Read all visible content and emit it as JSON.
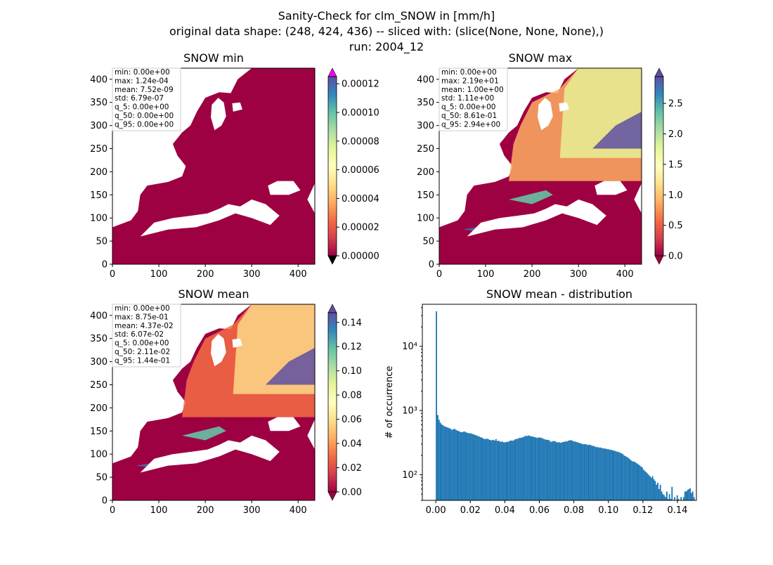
{
  "figure": {
    "title_lines": [
      "Sanity-Check for clm_SNOW in [mm/h]",
      "original data shape: (248, 424, 436) -- sliced with: (slice(None, None, None),)",
      "run: 2004_12"
    ]
  },
  "colors": {
    "cmap": [
      "#9e0142",
      "#d53e4f",
      "#f46d43",
      "#fdae61",
      "#fee08b",
      "#ffffbf",
      "#e6f598",
      "#abdda4",
      "#66c2a5",
      "#3288bd",
      "#5e4fa2"
    ],
    "over_magenta": "#ff00ff",
    "under_black": "#000000",
    "hist_bar": "#1f77b4",
    "land_low": "#9e0142"
  },
  "chart_data": [
    {
      "type": "heatmap",
      "title": "SNOW min",
      "xlim": [
        0,
        436
      ],
      "ylim": [
        0,
        424
      ],
      "xticks": [
        "0",
        "100",
        "200",
        "300",
        "400"
      ],
      "yticks": [
        "0",
        "50",
        "100",
        "150",
        "200",
        "250",
        "300",
        "350",
        "400"
      ],
      "stats": [
        "min: 0.00e+00",
        "max: 1.24e-04",
        "mean: 7.52e-09",
        "std: 6.79e-07",
        "q_5: 0.00e+00",
        "q_50: 0.00e+00",
        "q_95: 0.00e+00"
      ],
      "colorbar": {
        "range": [
          0,
          0.000125
        ],
        "ticks": [
          "0.00000",
          "0.00002",
          "0.00004",
          "0.00006",
          "0.00008",
          "0.00010",
          "0.00012"
        ],
        "tick_values": [
          0,
          2e-05,
          4e-05,
          6e-05,
          8e-05,
          0.0001,
          0.00012
        ],
        "extend": "both"
      },
      "field_level": 0.0
    },
    {
      "type": "heatmap",
      "title": "SNOW max",
      "xlim": [
        0,
        436
      ],
      "ylim": [
        0,
        424
      ],
      "xticks": [
        "0",
        "100",
        "200",
        "300",
        "400"
      ],
      "yticks": [
        "0",
        "50",
        "100",
        "150",
        "200",
        "250",
        "300",
        "350",
        "400"
      ],
      "stats": [
        "min: 0.00e+00",
        "max: 2.19e+01",
        "mean: 1.00e+00",
        "std: 1.11e+00",
        "q_5: 0.00e+00",
        "q_50: 8.61e-01",
        "q_95: 2.94e+00"
      ],
      "colorbar": {
        "range": [
          0,
          2.94
        ],
        "ticks": [
          "0.0",
          "0.5",
          "1.0",
          "1.5",
          "2.0",
          "2.5"
        ],
        "tick_values": [
          0,
          0.5,
          1.0,
          1.5,
          2.0,
          2.5
        ],
        "extend": "both"
      },
      "field_level": 1.0
    },
    {
      "type": "heatmap",
      "title": "SNOW mean",
      "xlim": [
        0,
        436
      ],
      "ylim": [
        0,
        424
      ],
      "xticks": [
        "0",
        "100",
        "200",
        "300",
        "400"
      ],
      "yticks": [
        "0",
        "50",
        "100",
        "150",
        "200",
        "250",
        "300",
        "350",
        "400"
      ],
      "stats": [
        "min: 0.00e+00",
        "max: 8.75e-01",
        "mean: 4.37e-02",
        "std: 6.07e-02",
        "q_5: 0.00e+00",
        "q_50: 2.11e-02",
        "q_95: 1.44e-01"
      ],
      "colorbar": {
        "range": [
          0,
          0.148
        ],
        "ticks": [
          "0.00",
          "0.02",
          "0.04",
          "0.06",
          "0.08",
          "0.10",
          "0.12",
          "0.14"
        ],
        "tick_values": [
          0,
          0.02,
          0.04,
          0.06,
          0.08,
          0.1,
          0.12,
          0.14
        ],
        "extend": "both"
      },
      "field_level": 0.6
    },
    {
      "type": "bar",
      "title": "SNOW mean - distribution",
      "ylabel": "# of occurrence",
      "yscale": "log",
      "xlim": [
        -0.0078,
        0.151
      ],
      "ylim": [
        40,
        45000
      ],
      "xticks": [
        "0.00",
        "0.02",
        "0.04",
        "0.06",
        "0.08",
        "0.10",
        "0.12",
        "0.14"
      ],
      "xtick_values": [
        0,
        0.02,
        0.04,
        0.06,
        0.08,
        0.1,
        0.12,
        0.14
      ],
      "yticks": [
        "10²",
        "10³",
        "10⁴"
      ],
      "ytick_values": [
        100,
        1000,
        10000
      ],
      "bin_start": 0.0,
      "bin_width": 0.00075,
      "values": [
        35000,
        850,
        720,
        650,
        610,
        590,
        570,
        560,
        550,
        540,
        530,
        520,
        500,
        510,
        520,
        500,
        490,
        480,
        470,
        460,
        460,
        470,
        470,
        455,
        450,
        445,
        440,
        440,
        430,
        425,
        415,
        410,
        400,
        395,
        385,
        380,
        370,
        360,
        360,
        365,
        360,
        350,
        345,
        345,
        350,
        340,
        360,
        335,
        340,
        330,
        325,
        330,
        320,
        320,
        325,
        325,
        330,
        340,
        340,
        340,
        345,
        360,
        360,
        365,
        375,
        375,
        380,
        385,
        395,
        405,
        400,
        410,
        405,
        395,
        395,
        390,
        385,
        380,
        375,
        380,
        380,
        375,
        370,
        360,
        355,
        350,
        350,
        345,
        330,
        325,
        335,
        335,
        330,
        320,
        320,
        320,
        315,
        320,
        325,
        325,
        335,
        330,
        340,
        345,
        345,
        340,
        330,
        330,
        325,
        320,
        315,
        310,
        305,
        300,
        300,
        300,
        295,
        290,
        295,
        290,
        285,
        280,
        280,
        270,
        270,
        268,
        265,
        265,
        260,
        258,
        255,
        255,
        250,
        250,
        245,
        245,
        240,
        238,
        235,
        230,
        228,
        225,
        220,
        215,
        210,
        200,
        195,
        190,
        185,
        178,
        170,
        165,
        160,
        160,
        155,
        150,
        145,
        140,
        135,
        130,
        120,
        115,
        110,
        105,
        100,
        95,
        90,
        95,
        85,
        80,
        70,
        75,
        60,
        70,
        55,
        50,
        48,
        45,
        55,
        42,
        50,
        42,
        65,
        40,
        45,
        40,
        48,
        42,
        40,
        45,
        40,
        45,
        55,
        55,
        58,
        60,
        62,
        52,
        55,
        45
      ]
    }
  ]
}
